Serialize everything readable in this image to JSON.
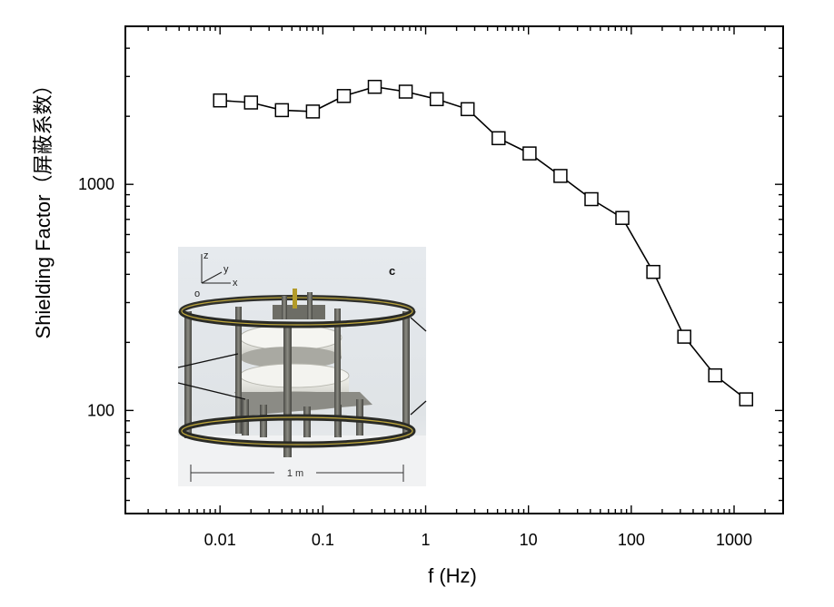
{
  "chart_data": {
    "type": "line",
    "xlabel": "f (Hz)",
    "ylabel": "Shielding Factor（屏蔽系数）",
    "x_scale": "log",
    "y_scale": "log",
    "xlim": [
      0.0012,
      3000
    ],
    "ylim": [
      35,
      5000
    ],
    "x_ticks": [
      {
        "value": 0.01,
        "label": "0.01"
      },
      {
        "value": 0.1,
        "label": "0.1"
      },
      {
        "value": 1,
        "label": "1"
      },
      {
        "value": 10,
        "label": "10"
      },
      {
        "value": 100,
        "label": "100"
      },
      {
        "value": 1000,
        "label": "1000"
      }
    ],
    "y_ticks": [
      {
        "value": 100,
        "label": "100"
      },
      {
        "value": 1000,
        "label": "1000"
      }
    ],
    "grid": false,
    "marker": "open-square",
    "line_color": "#000000",
    "series": [
      {
        "x": [
          0.01,
          0.02,
          0.04,
          0.08,
          0.16,
          0.32,
          0.64,
          1.28,
          2.56,
          5.12,
          10.24,
          20.48,
          40.96,
          81.92,
          163.84,
          327.68,
          655.36,
          1310.72
        ],
        "y": [
          2350,
          2300,
          2130,
          2100,
          2460,
          2700,
          2570,
          2380,
          2150,
          1600,
          1370,
          1090,
          860,
          710,
          410,
          212,
          143,
          112
        ]
      }
    ],
    "inset": {
      "description_text_labels": {
        "panel_letter": "c",
        "axis_z": "z",
        "axis_y": "y",
        "axis_x": "x",
        "origin": "o",
        "scale": "1 m"
      }
    }
  }
}
